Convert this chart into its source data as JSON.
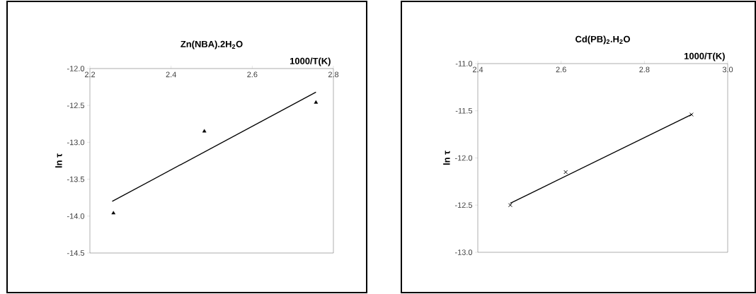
{
  "chart_data": [
    {
      "type": "scatter",
      "title": "Zn(NBA).2H$_{2}$O",
      "xlabel": "1000/T(K)",
      "ylabel": "ln τ",
      "xlim": [
        2.2,
        2.8
      ],
      "ylim": [
        -14.5,
        -12
      ],
      "xticks": [
        2.2,
        2.4,
        2.6,
        2.8
      ],
      "yticks": [
        {
          "value": -14.5,
          "label": "-14.5"
        },
        {
          "value": -14,
          "label": "-14.0"
        },
        -13.5,
        {
          "value": -13,
          "label": "-13.0"
        },
        -12.5,
        {
          "value": -12,
          "label": "-12.0"
        }
      ],
      "series": [
        {
          "type": "scatter",
          "color": "#000000",
          "marker": "triangle",
          "x": [
            2.258,
            2.482,
            2.757
          ],
          "values": [
            -13.96,
            -12.85,
            -12.46
          ]
        },
        {
          "type": "line",
          "color": "#000000",
          "marker": "none",
          "x": [
            2.255,
            2.757
          ],
          "values": [
            -13.8,
            -12.32
          ]
        }
      ]
    },
    {
      "type": "scatter",
      "title": "Cd(PB)$_{2}$.H$_{2}$O",
      "xlabel": "1000/T(K)",
      "ylabel": "ln τ",
      "xlim": [
        2.4,
        3.0
      ],
      "ylim": [
        -13,
        -11
      ],
      "xticks": [
        2.4,
        2.6,
        2.8,
        {
          "value": 3.0,
          "label": "3.0"
        }
      ],
      "yticks": [
        {
          "value": -13,
          "label": "-13.0"
        },
        -12.5,
        {
          "value": -12,
          "label": "-12.0"
        },
        -11.5,
        {
          "value": -11,
          "label": "-11.0"
        }
      ],
      "series": [
        {
          "type": "scatter",
          "color": "#000000",
          "marker": "cross",
          "x": [
            2.478,
            2.611,
            2.913
          ],
          "values": [
            -12.5,
            -12.15,
            -11.54
          ]
        },
        {
          "type": "line",
          "color": "#000000",
          "marker": "none",
          "x": [
            2.478,
            2.913
          ],
          "values": [
            -12.48,
            -11.54
          ]
        }
      ]
    }
  ]
}
